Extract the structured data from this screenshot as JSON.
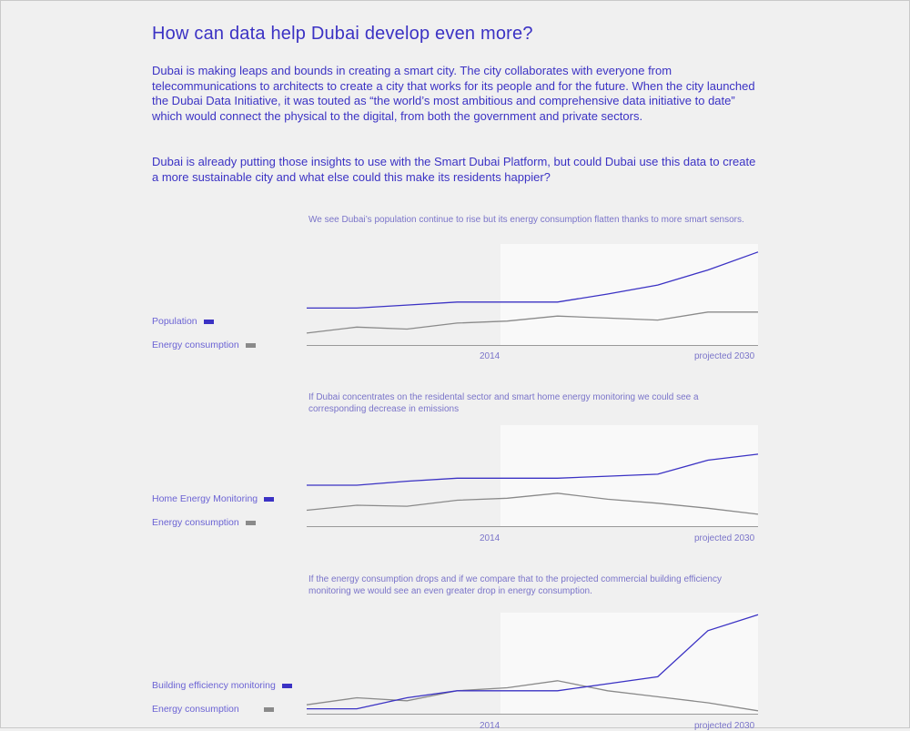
{
  "page": {
    "title": "How can data help Dubai develop even more?",
    "paragraphs": [
      "Dubai is making leaps and bounds in creating a smart city. The city collaborates with everyone from telecommunications to architects to create a city that works for its people and for the future. When the city launched the Dubai Data Initiative, it was touted as “the world’s most ambitious and comprehensive data initiative to date” which would connect the physical to the digital, from both the government and private sectors.",
      "Dubai is already putting those insights to use with the Smart Dubai Platform, but could Dubai use this data to create a more sustainable city and what else could this make its residents happier?"
    ]
  },
  "colors": {
    "blue": "#3b32c4",
    "gray": "#8a8a8a",
    "projected_band": "#f9f9f9",
    "axis": "#999999"
  },
  "chart_data": [
    {
      "type": "line",
      "title": "We see Dubai’s population continue to rise but its energy consumption flatten thanks to more smart sensors.",
      "x_tick_labels": [
        "2014",
        "projected 2030"
      ],
      "projected_region": true,
      "ylim": [
        0,
        100
      ],
      "series": [
        {
          "name": "Population",
          "color": "#3b32c4",
          "values": [
            36,
            36,
            39,
            42,
            42,
            42,
            50,
            59,
            74,
            92
          ]
        },
        {
          "name": "Energy consumption",
          "color": "#8a8a8a",
          "values": [
            11,
            17,
            15,
            21,
            23,
            28,
            26,
            24,
            32,
            32
          ]
        }
      ]
    },
    {
      "type": "line",
      "title": "If Dubai concentrates on the residental sector and smart home energy monitoring we could see a corresponding decrease in emissions",
      "x_tick_labels": [
        "2014",
        "projected 2030"
      ],
      "projected_region": true,
      "ylim": [
        0,
        100
      ],
      "series": [
        {
          "name": "Home Energy Monitoring",
          "color": "#3b32c4",
          "values": [
            40,
            40,
            44,
            47,
            47,
            47,
            49,
            51,
            65,
            71
          ]
        },
        {
          "name": "Energy consumption",
          "color": "#8a8a8a",
          "values": [
            15,
            20,
            19,
            25,
            27,
            32,
            26,
            22,
            17,
            11
          ]
        }
      ]
    },
    {
      "type": "line",
      "title": "If the energy consumption drops and if we compare that to the projected commercial building efficiency monitoring we would see an even greater drop in energy consumption.",
      "x_tick_labels": [
        "2014",
        "projected 2030"
      ],
      "projected_region": true,
      "ylim": [
        0,
        100
      ],
      "series": [
        {
          "name": "Building efficiency monitoring",
          "color": "#3b32c4",
          "values": [
            4,
            4,
            15,
            22,
            22,
            22,
            29,
            36,
            82,
            98
          ]
        },
        {
          "name": "Energy consumption",
          "color": "#8a8a8a",
          "values": [
            8,
            15,
            12,
            22,
            25,
            32,
            22,
            16,
            10,
            2
          ]
        }
      ]
    }
  ]
}
